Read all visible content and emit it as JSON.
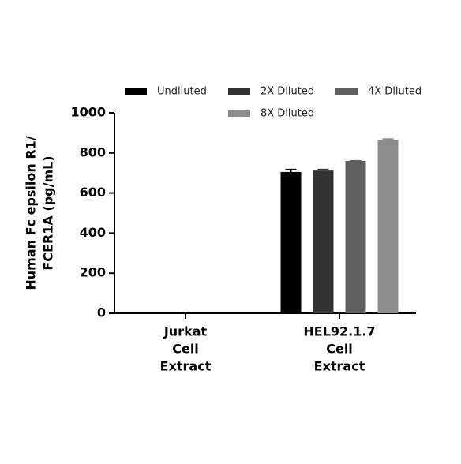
{
  "chart_data": {
    "type": "bar",
    "y_label": [
      "Human Fc epsilon R1/",
      "FCER1A (pg/mL)"
    ],
    "categories": [
      [
        "Jurkat",
        "Cell",
        "Extract"
      ],
      [
        "HEL92.1.7",
        "Cell",
        "Extract"
      ]
    ],
    "series": [
      {
        "name": "Undiluted",
        "color": "#000000",
        "values": [
          null,
          705
        ],
        "errors": [
          null,
          12
        ]
      },
      {
        "name": "2X Diluted",
        "color": "#333333",
        "values": [
          null,
          712
        ],
        "errors": [
          null,
          5
        ]
      },
      {
        "name": "4X Diluted",
        "color": "#5f5f5f",
        "values": [
          null,
          760
        ],
        "errors": [
          null,
          0
        ]
      },
      {
        "name": "8X Diluted",
        "color": "#8c8c8c",
        "values": [
          null,
          865
        ],
        "errors": [
          null,
          4
        ]
      }
    ],
    "ylim": [
      0,
      1000
    ],
    "yticks": [
      0,
      200,
      400,
      600,
      800,
      1000
    ],
    "grid": false
  }
}
